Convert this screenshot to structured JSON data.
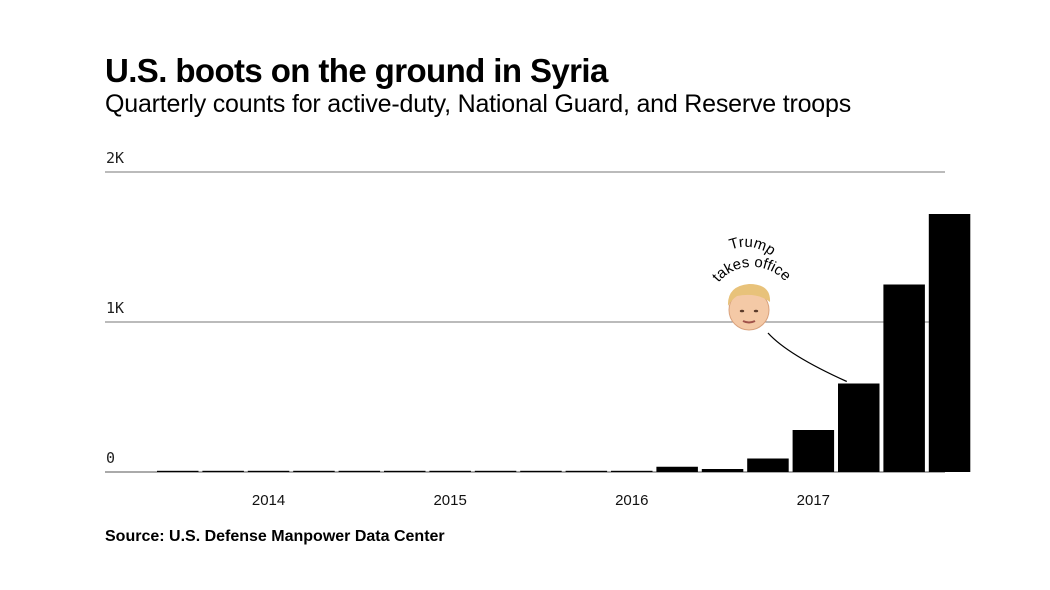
{
  "title": "U.S. boots on the ground in Syria",
  "subtitle": "Quarterly counts for active-duty, National Guard, and Reserve troops",
  "source": "Source: U.S. Defense Manpower Data Center",
  "chart_data": {
    "type": "bar",
    "title": "U.S. boots on the ground in Syria",
    "subtitle": "Quarterly counts for active-duty, National Guard, and Reserve troops",
    "xlabel": "",
    "ylabel": "",
    "ylim": [
      0,
      2000
    ],
    "y_ticks": [
      {
        "value": 0,
        "label": "0"
      },
      {
        "value": 1000,
        "label": "1K"
      },
      {
        "value": 2000,
        "label": "2K"
      }
    ],
    "x_ticks": [
      {
        "category": "2014 Q1",
        "label": "2014"
      },
      {
        "category": "2015 Q1",
        "label": "2015"
      },
      {
        "category": "2016 Q1",
        "label": "2016"
      },
      {
        "category": "2017 Q1",
        "label": "2017"
      }
    ],
    "grid": true,
    "bar_color": "#000000",
    "categories": [
      "2013 Q3",
      "2013 Q4",
      "2014 Q1",
      "2014 Q2",
      "2014 Q3",
      "2014 Q4",
      "2015 Q1",
      "2015 Q2",
      "2015 Q3",
      "2015 Q4",
      "2016 Q1",
      "2016 Q2",
      "2016 Q3",
      "2016 Q4",
      "2017 Q1",
      "2017 Q2",
      "2017 Q3",
      "2017 Q4"
    ],
    "values": [
      0,
      5,
      5,
      0,
      0,
      0,
      5,
      5,
      5,
      0,
      0,
      35,
      20,
      90,
      280,
      590,
      1250,
      1720
    ],
    "annotation": {
      "text_lines": [
        "Trump",
        "takes office"
      ],
      "category": "2017 Q1",
      "marker": "portrait"
    }
  }
}
